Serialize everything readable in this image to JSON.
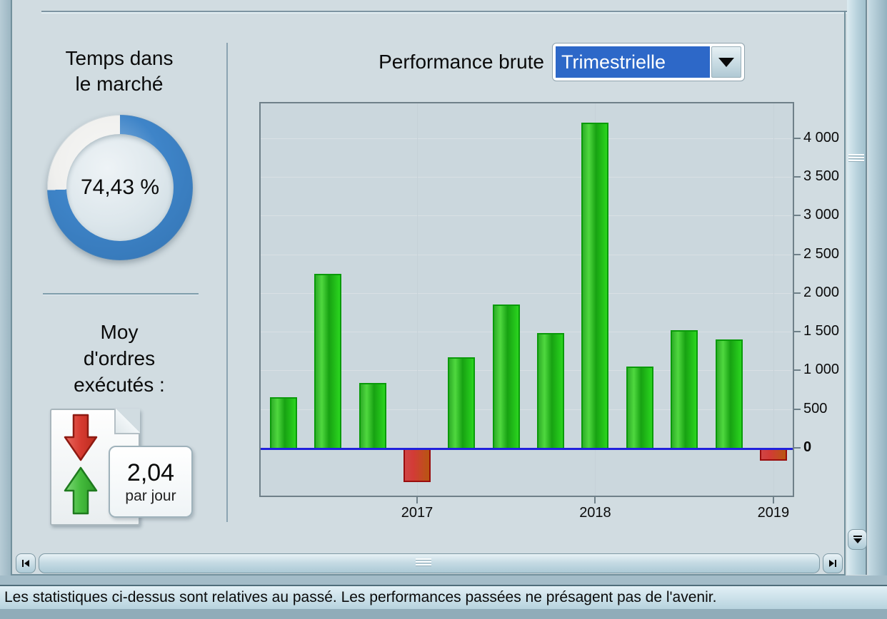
{
  "left_panel": {
    "time_in_market": {
      "title_line1": "Temps dans",
      "title_line2": "le marché",
      "value": "74,43 %",
      "percent": 74.43,
      "ring_color": "#3e84c8",
      "ring_rest_color": "#f0f0ee"
    },
    "orders": {
      "title_line1": "Moy",
      "title_line2": "d'ordres",
      "title_line3": "exécutés :",
      "value": "2,04",
      "unit": "par jour"
    }
  },
  "header": {
    "label": "Performance brute",
    "dropdown_value": "Trimestrielle"
  },
  "chart_data": {
    "type": "bar",
    "title": "Performance brute",
    "period": "Trimestrielle",
    "x": [
      "2016-T2",
      "2016-T3",
      "2016-T4",
      "2017-T1",
      "2017-T2",
      "2017-T3",
      "2017-T4",
      "2018-T1",
      "2018-T2",
      "2018-T3",
      "2018-T4",
      "2019-T1"
    ],
    "values": [
      650,
      2250,
      840,
      -410,
      1170,
      1850,
      1480,
      4200,
      1050,
      1520,
      1400,
      -140
    ],
    "x_tick_labels": [
      "2017",
      "2018",
      "2019"
    ],
    "x_tick_indices": [
      3,
      7,
      11
    ],
    "y_ticks": [
      0,
      500,
      1000,
      1500,
      2000,
      2500,
      3000,
      3500,
      4000
    ],
    "y_tick_labels": [
      "0",
      "500",
      "1 000",
      "1 500",
      "2 000",
      "2 500",
      "3 000",
      "3 500",
      "4 000"
    ],
    "ylim": [
      -640,
      4450
    ],
    "grid": true,
    "legend": null,
    "positive_color": "#2fc528",
    "negative_color": "#c84a28",
    "zero_line_color": "#2121dd"
  },
  "footer": {
    "disclaimer": "Les statistiques ci-dessus sont relatives au passé. Les performances passées ne présagent pas de l'avenir."
  }
}
